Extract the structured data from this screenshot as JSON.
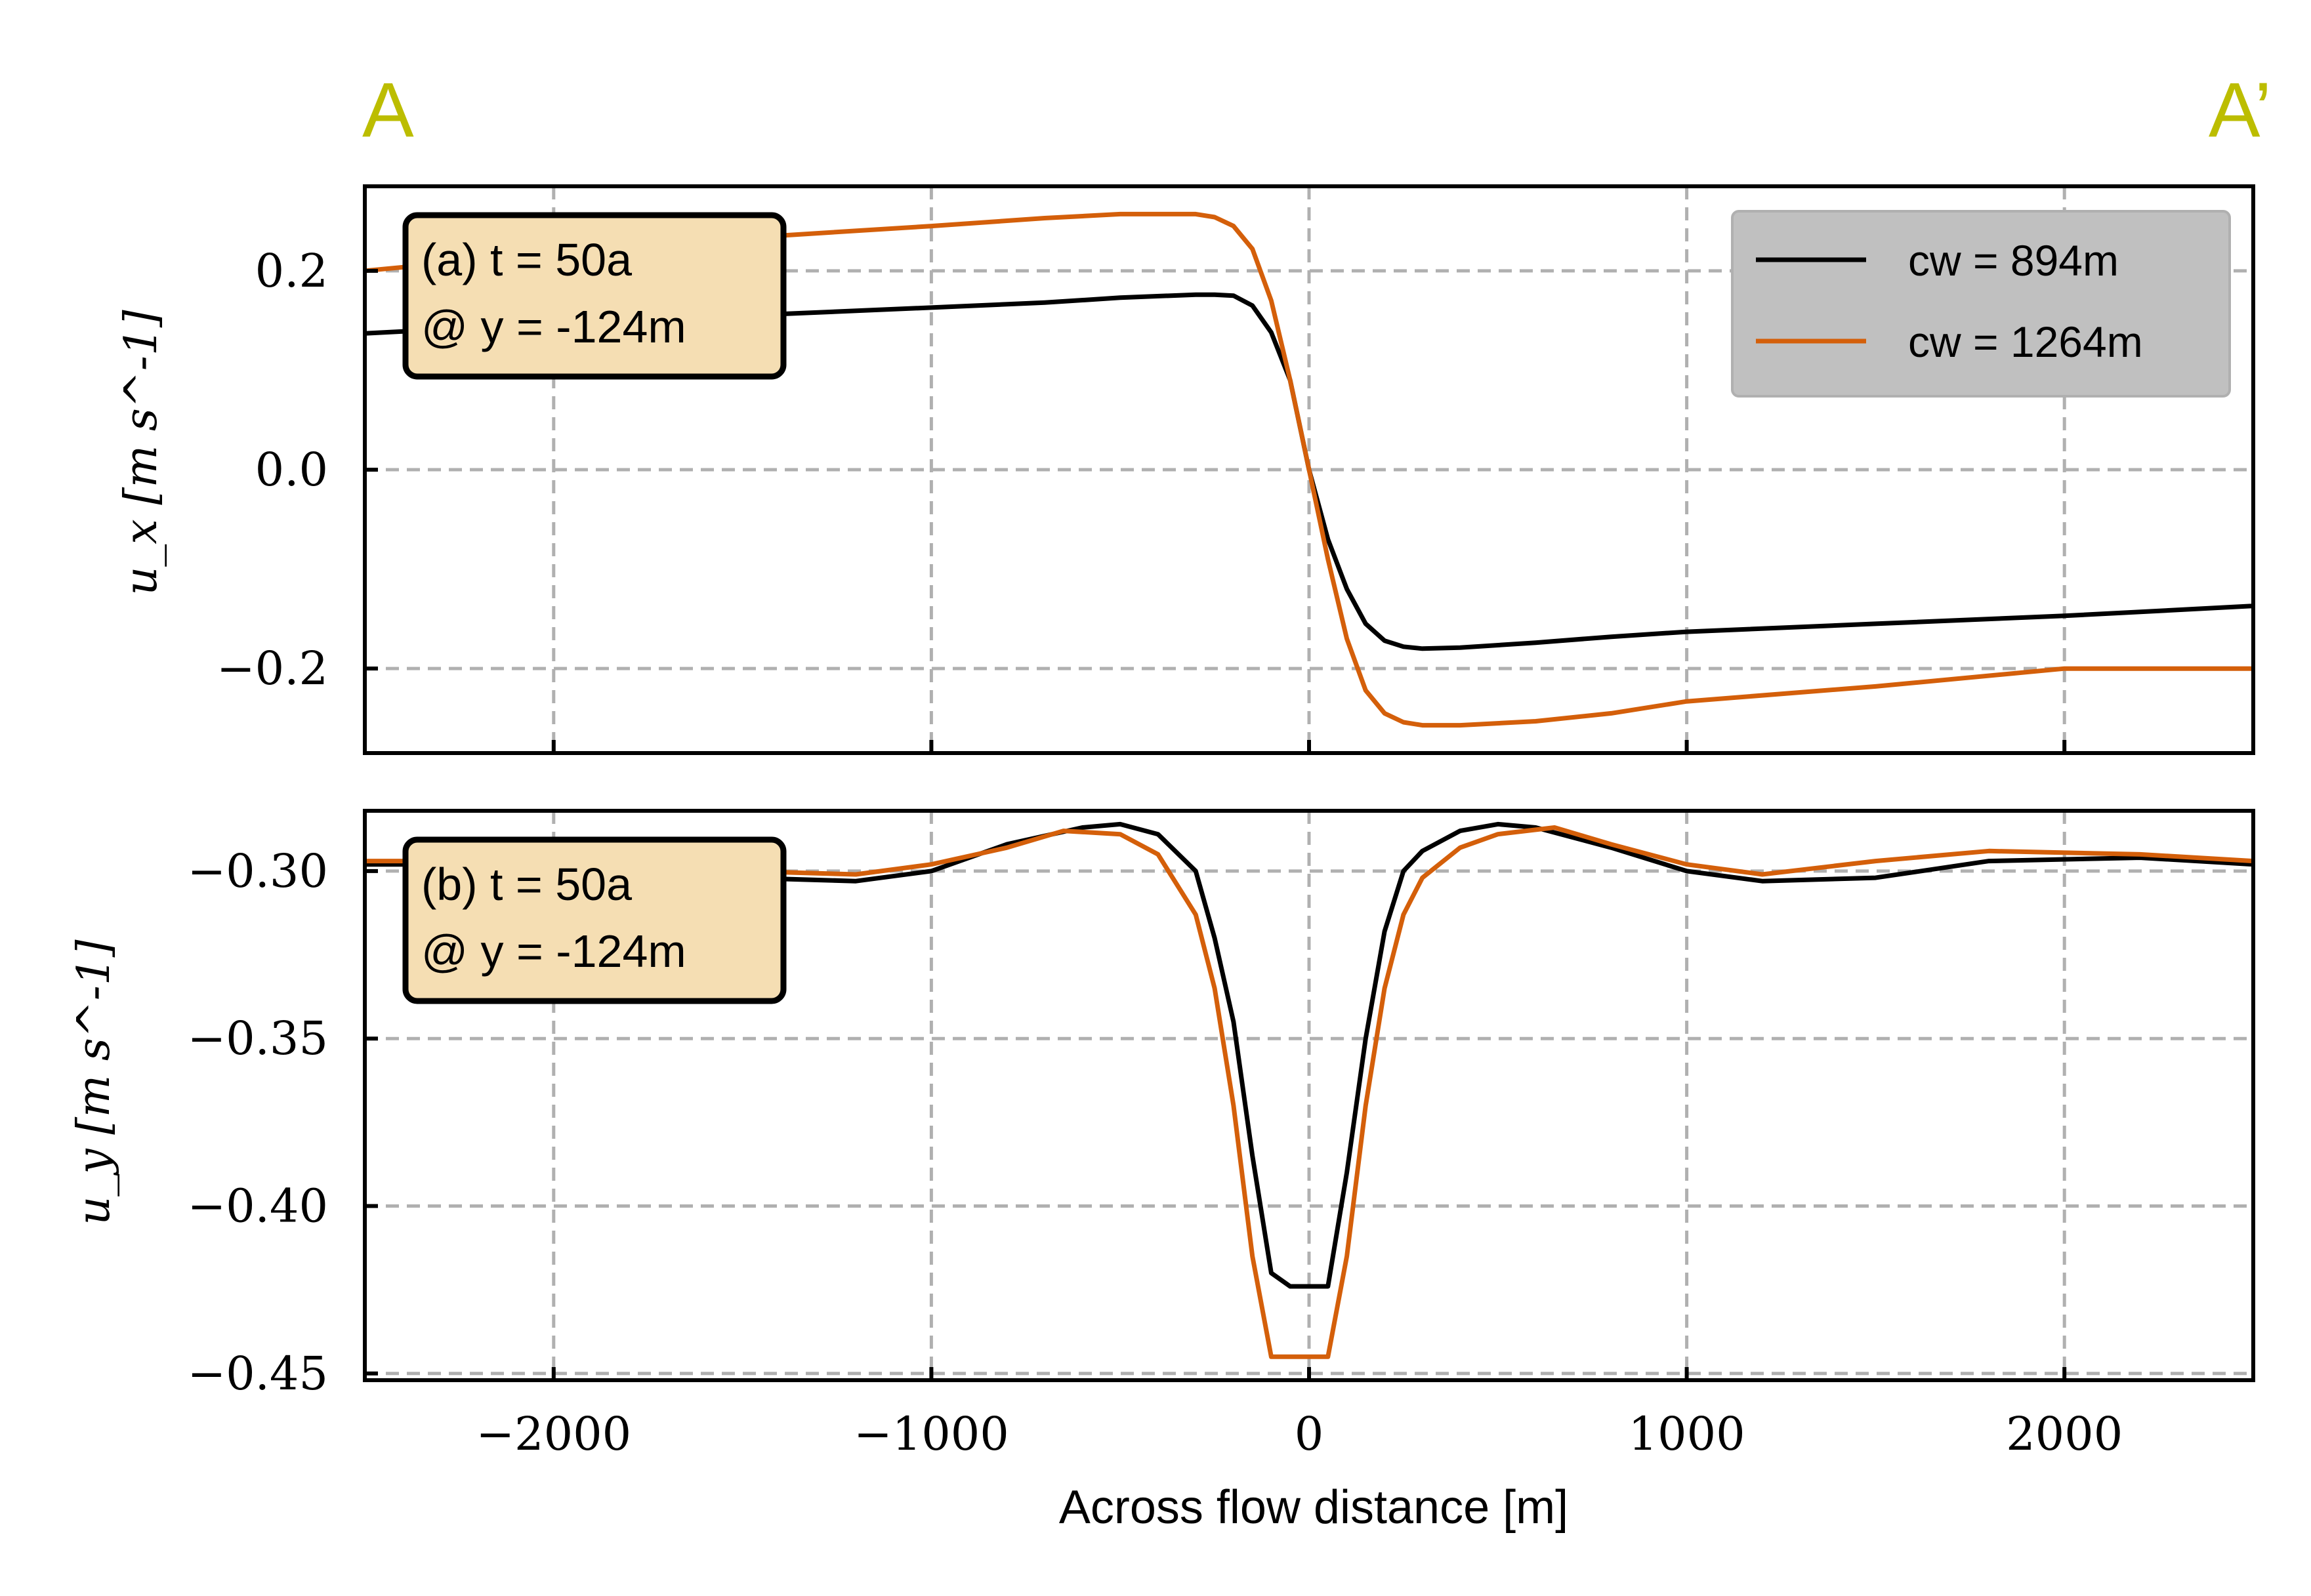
{
  "header": {
    "left_label": "A",
    "right_label": "A’",
    "label_color": "#bcbd00"
  },
  "colors": {
    "series_black": "#000000",
    "series_orange": "#d45f0a",
    "grid": "#b0b0b0",
    "annotation_bg": "#f5deb3",
    "legend_bg": "#c0c0c0"
  },
  "chart_data": [
    {
      "type": "line",
      "panel": "top",
      "annotation": [
        "(a) t = 50a",
        "@ y = -124m"
      ],
      "ylabel": "u_x [m s^-1]",
      "xlim": [
        -2500,
        2500
      ],
      "ylim": [
        -0.285,
        0.285
      ],
      "yticks": [
        -0.2,
        0.0,
        0.2
      ],
      "ytick_labels": [
        "−0.2",
        "0.0",
        "0.2"
      ],
      "xticks": [
        -2000,
        -1000,
        0,
        1000,
        2000
      ],
      "grid": true,
      "legend": {
        "placement": "top-right",
        "entries": [
          "cw = 894m",
          "cw = 1264m"
        ]
      },
      "series": [
        {
          "name": "cw = 894m",
          "color": "#000000",
          "x": [
            -2500,
            -2000,
            -1500,
            -1000,
            -700,
            -500,
            -300,
            -250,
            -200,
            -150,
            -100,
            -50,
            0,
            50,
            100,
            150,
            200,
            250,
            300,
            400,
            600,
            800,
            1000,
            1500,
            2000,
            2500
          ],
          "y": [
            0.137,
            0.147,
            0.155,
            0.163,
            0.168,
            0.173,
            0.176,
            0.176,
            0.175,
            0.165,
            0.138,
            0.09,
            0.0,
            -0.07,
            -0.12,
            -0.155,
            -0.172,
            -0.178,
            -0.18,
            -0.179,
            -0.174,
            -0.168,
            -0.163,
            -0.155,
            -0.147,
            -0.137
          ]
        },
        {
          "name": "cw = 1264m",
          "color": "#d45f0a",
          "x": [
            -2500,
            -2000,
            -1500,
            -1000,
            -700,
            -500,
            -400,
            -300,
            -250,
            -200,
            -150,
            -100,
            -50,
            0,
            50,
            100,
            150,
            200,
            250,
            300,
            400,
            600,
            800,
            1000,
            1500,
            2000,
            2500
          ],
          "y": [
            0.2,
            0.218,
            0.233,
            0.245,
            0.253,
            0.257,
            0.257,
            0.257,
            0.254,
            0.245,
            0.222,
            0.17,
            0.09,
            0.0,
            -0.09,
            -0.17,
            -0.222,
            -0.245,
            -0.254,
            -0.257,
            -0.257,
            -0.253,
            -0.245,
            -0.233,
            -0.218,
            -0.2,
            -0.2
          ]
        }
      ]
    },
    {
      "type": "line",
      "panel": "bottom",
      "annotation": [
        "(b) t = 50a",
        "@ y = -124m"
      ],
      "ylabel": "u_y [m s^-1]",
      "xlabel": "Across flow distance [m]",
      "xlim": [
        -2500,
        2500
      ],
      "ylim": [
        -0.452,
        -0.282
      ],
      "yticks": [
        -0.45,
        -0.4,
        -0.35,
        -0.3
      ],
      "ytick_labels": [
        "−0.45",
        "−0.40",
        "−0.35",
        "−0.30"
      ],
      "xticks": [
        -2000,
        -1000,
        0,
        1000,
        2000
      ],
      "xtick_labels": [
        "−2000",
        "−1000",
        "0",
        "1000",
        "2000"
      ],
      "grid": true,
      "series": [
        {
          "name": "cw = 894m",
          "color": "#000000",
          "x": [
            -2500,
            -2200,
            -1800,
            -1500,
            -1200,
            -1000,
            -800,
            -600,
            -500,
            -400,
            -300,
            -250,
            -200,
            -150,
            -100,
            -50,
            0,
            50,
            100,
            150,
            200,
            250,
            300,
            400,
            500,
            600,
            800,
            1000,
            1200,
            1500,
            1800,
            2200,
            2500
          ],
          "y": [
            -0.298,
            -0.298,
            -0.3,
            -0.302,
            -0.303,
            -0.3,
            -0.292,
            -0.287,
            -0.286,
            -0.289,
            -0.3,
            -0.32,
            -0.345,
            -0.385,
            -0.42,
            -0.424,
            -0.424,
            -0.424,
            -0.39,
            -0.35,
            -0.318,
            -0.3,
            -0.294,
            -0.288,
            -0.286,
            -0.287,
            -0.293,
            -0.3,
            -0.303,
            -0.302,
            -0.297,
            -0.296,
            -0.298
          ]
        },
        {
          "name": "cw = 1264m",
          "color": "#d45f0a",
          "x": [
            -2500,
            -2200,
            -1800,
            -1500,
            -1200,
            -1000,
            -800,
            -650,
            -500,
            -400,
            -300,
            -250,
            -200,
            -150,
            -100,
            -50,
            0,
            50,
            100,
            150,
            200,
            250,
            300,
            400,
            500,
            650,
            800,
            1000,
            1200,
            1500,
            1800,
            2200,
            2500
          ],
          "y": [
            -0.297,
            -0.297,
            -0.298,
            -0.3,
            -0.301,
            -0.298,
            -0.293,
            -0.288,
            -0.289,
            -0.295,
            -0.313,
            -0.335,
            -0.37,
            -0.415,
            -0.445,
            -0.445,
            -0.445,
            -0.445,
            -0.415,
            -0.37,
            -0.335,
            -0.313,
            -0.302,
            -0.293,
            -0.289,
            -0.287,
            -0.292,
            -0.298,
            -0.301,
            -0.297,
            -0.294,
            -0.295,
            -0.297
          ]
        }
      ]
    }
  ]
}
